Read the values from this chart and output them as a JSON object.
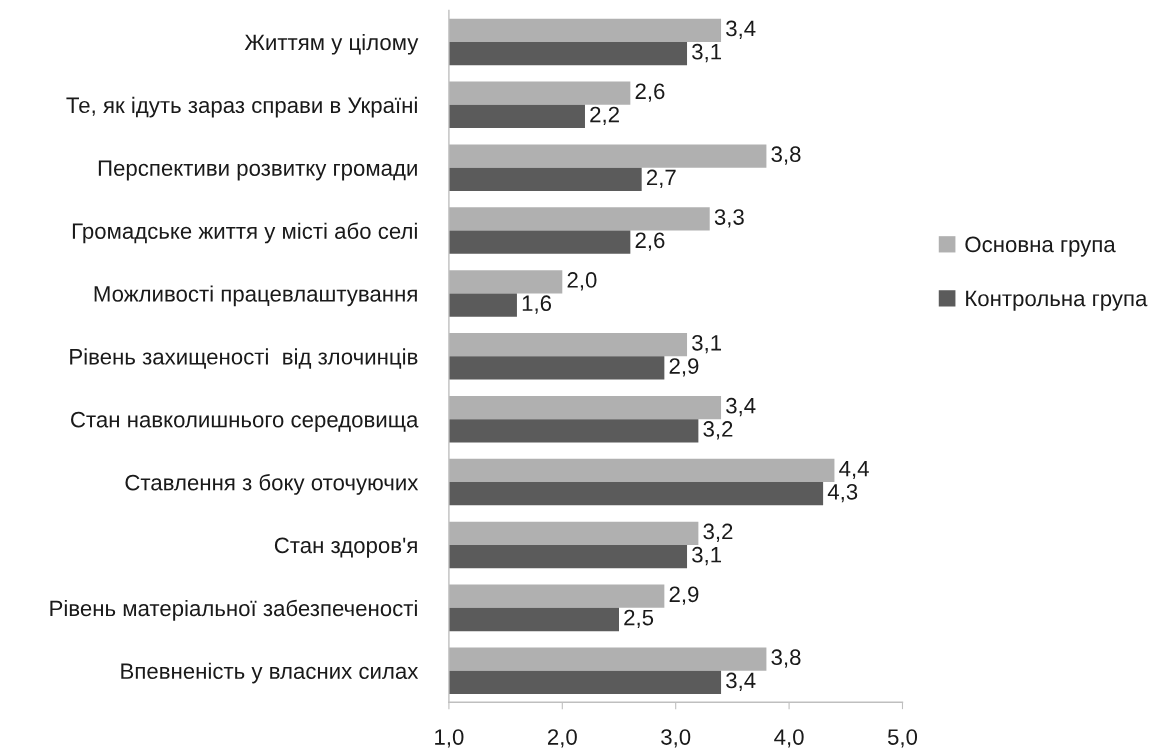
{
  "chart_data": {
    "type": "bar",
    "orientation": "horizontal",
    "categories": [
      "Життям у цілому",
      "Те, як ідуть зараз справи в Україні",
      "Перспективи розвитку громади",
      "Громадське життя у місті або селі",
      "Можливості працевлаштування",
      "Рівень захищеності  від злочинців",
      "Стан навколишнього середовища",
      "Ставлення з боку оточуючих",
      "Стан здоров'я",
      "Рівень матеріальної забезпеченості",
      "Впевненість у власних силах"
    ],
    "series": [
      {
        "name": "Основна група",
        "color": "#b0b0b0",
        "values": [
          3.4,
          2.6,
          3.8,
          3.3,
          2.0,
          3.1,
          3.4,
          4.4,
          3.2,
          2.9,
          3.8
        ],
        "value_labels": [
          "3,4",
          "2,6",
          "3,8",
          "3,3",
          "2,0",
          "3,1",
          "3,4",
          "4,4",
          "3,2",
          "2,9",
          "3,8"
        ]
      },
      {
        "name": "Контрольна група",
        "color": "#5b5b5b",
        "values": [
          3.1,
          2.2,
          2.7,
          2.6,
          1.6,
          2.9,
          3.2,
          4.3,
          3.1,
          2.5,
          3.4
        ],
        "value_labels": [
          "3,1",
          "2,2",
          "2,7",
          "2,6",
          "1,6",
          "2,9",
          "3,2",
          "4,3",
          "3,1",
          "2,5",
          "3,4"
        ]
      }
    ],
    "xlim": [
      1.0,
      5.0
    ],
    "xticks": [
      {
        "value": 1.0,
        "label": "1,0"
      },
      {
        "value": 2.0,
        "label": "2,0"
      },
      {
        "value": 3.0,
        "label": "3,0"
      },
      {
        "value": 4.0,
        "label": "4,0"
      },
      {
        "value": 5.0,
        "label": "5,0"
      }
    ],
    "legend": "right"
  }
}
